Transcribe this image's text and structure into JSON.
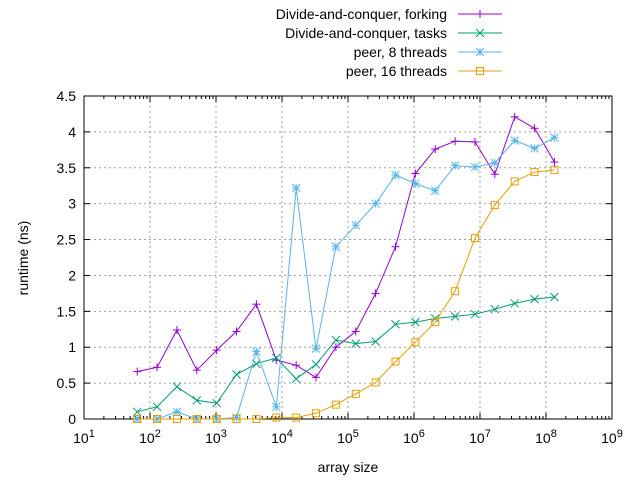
{
  "chart_data": {
    "type": "line",
    "title": "",
    "xlabel": "array size",
    "ylabel": "runtime (ns)",
    "x_scale": "log10",
    "xlim": [
      10,
      1000000000
    ],
    "ylim": [
      0,
      4.5
    ],
    "grid": true,
    "legend_position": "top-right, outside plot",
    "x_ticks": [
      {
        "base": "10",
        "exp": "1",
        "value": 10
      },
      {
        "base": "10",
        "exp": "2",
        "value": 100
      },
      {
        "base": "10",
        "exp": "3",
        "value": 1000
      },
      {
        "base": "10",
        "exp": "4",
        "value": 10000
      },
      {
        "base": "10",
        "exp": "5",
        "value": 100000
      },
      {
        "base": "10",
        "exp": "6",
        "value": 1000000
      },
      {
        "base": "10",
        "exp": "7",
        "value": 10000000
      },
      {
        "base": "10",
        "exp": "8",
        "value": 100000000
      },
      {
        "base": "10",
        "exp": "9",
        "value": 1000000000
      }
    ],
    "y_ticks": [
      "0",
      "0.5",
      "1",
      "1.5",
      "2",
      "2.5",
      "3",
      "3.5",
      "4",
      "4.5"
    ],
    "x": [
      64,
      128,
      256,
      512,
      1024,
      2048,
      4096,
      8192,
      16384,
      32768,
      65536,
      131072,
      262144,
      524288,
      1048576,
      2097152,
      4194304,
      8388608,
      16777216,
      33554432,
      67108864,
      134217728
    ],
    "series": [
      {
        "name": "Divide-and-conquer, forking",
        "color": "#9400d3",
        "marker": "plus",
        "values": [
          0.66,
          0.72,
          1.24,
          0.68,
          0.96,
          1.22,
          1.6,
          0.82,
          0.75,
          0.58,
          1.0,
          1.22,
          1.75,
          2.4,
          3.42,
          3.76,
          3.87,
          3.86,
          3.41,
          4.21,
          4.05,
          3.58
        ]
      },
      {
        "name": "Divide-and-conquer, tasks",
        "color": "#009e73",
        "marker": "cross",
        "values": [
          0.1,
          0.17,
          0.45,
          0.26,
          0.22,
          0.62,
          0.77,
          0.85,
          0.56,
          0.76,
          1.1,
          1.05,
          1.08,
          1.32,
          1.35,
          1.4,
          1.43,
          1.46,
          1.53,
          1.61,
          1.67,
          1.7
        ]
      },
      {
        "name": "peer, 8 threads",
        "color": "#56b4e9",
        "marker": "star",
        "values": [
          0.0,
          0.0,
          0.1,
          0.0,
          0.0,
          0.02,
          0.94,
          0.17,
          3.22,
          0.98,
          2.4,
          2.7,
          3.0,
          3.4,
          3.28,
          3.18,
          3.53,
          3.51,
          3.57,
          3.88,
          3.77,
          3.92
        ]
      },
      {
        "name": "peer, 16 threads",
        "color": "#e69f00",
        "marker": "square",
        "values": [
          0.0,
          0.0,
          0.0,
          0.0,
          0.0,
          0.0,
          0.0,
          0.02,
          0.02,
          0.08,
          0.2,
          0.35,
          0.51,
          0.8,
          1.07,
          1.35,
          1.78,
          2.52,
          2.98,
          3.31,
          3.44,
          3.47
        ]
      }
    ]
  }
}
